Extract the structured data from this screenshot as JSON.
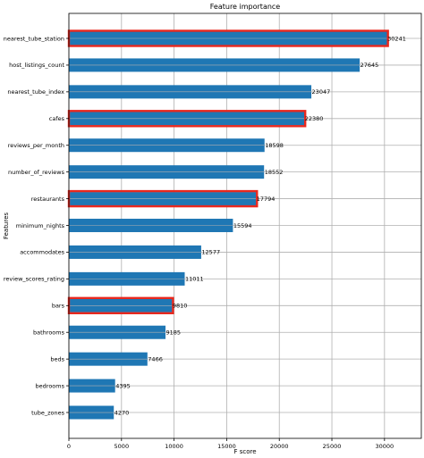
{
  "chart_data": {
    "type": "bar",
    "orientation": "horizontal",
    "title": "Feature importance",
    "xlabel": "F score",
    "ylabel": "Features",
    "xlim": [
      0,
      33500
    ],
    "xticks": [
      0,
      5000,
      10000,
      15000,
      20000,
      25000,
      30000
    ],
    "grid": true,
    "bar_color": "#1f77b4",
    "highlight_color": "#e8281e",
    "categories": [
      "nearest_tube_station",
      "host_listings_count",
      "nearest_tube_index",
      "cafes",
      "reviews_per_month",
      "number_of_reviews",
      "restaurants",
      "minimum_nights",
      "accommodates",
      "review_scores_rating",
      "bars",
      "bathrooms",
      "beds",
      "bedrooms",
      "tube_zones"
    ],
    "values": [
      30241,
      27645,
      23047,
      22380,
      18598,
      18552,
      17794,
      15594,
      12577,
      11011,
      9810,
      9185,
      7466,
      4395,
      4270
    ],
    "highlighted": [
      "nearest_tube_station",
      "cafes",
      "restaurants",
      "bars"
    ]
  }
}
